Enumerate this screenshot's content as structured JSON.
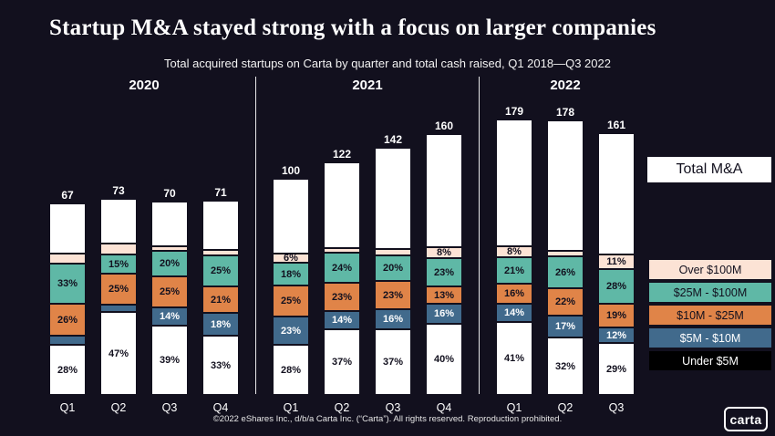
{
  "header": {
    "title": "Startup M&A stayed strong with a focus on larger companies",
    "subtitle": "Total acquired startups on Carta by quarter and total cash raised, Q1 2018—Q3 2022"
  },
  "legend": {
    "total_label": "Total M&A",
    "items": [
      {
        "key": "over_100m",
        "label": "Over $100M",
        "color": "#fce3d5",
        "text_color": "#12101e"
      },
      {
        "key": "25m_100m",
        "label": "$25M - $100M",
        "color": "#5fb8a6",
        "text_color": "#12101e"
      },
      {
        "key": "10m_25m",
        "label": "$10M - $25M",
        "color": "#e08448",
        "text_color": "#12101e"
      },
      {
        "key": "5m_10m",
        "label": "$5M - $10M",
        "color": "#416a8c",
        "text_color": "#ffffff"
      },
      {
        "key": "under_5m",
        "label": "Under $5M",
        "color": "#000000",
        "text_color": "#ffffff"
      }
    ]
  },
  "footer": {
    "text": "©2022 eShares Inc., d/b/a Carta Inc. (“Carta”). All rights reserved. Reproduction prohibited."
  },
  "logo": {
    "text": "carta"
  },
  "colors": {
    "background": "#12101e",
    "bar_white": "#ffffff",
    "divider": "#ffffff"
  },
  "chart_data": {
    "type": "bar",
    "stacked": true,
    "title": "Startup M&A stayed strong with a focus on larger companies",
    "subtitle": "Total acquired startups on Carta by quarter and total cash raised, Q1 2018—Q3 2022",
    "ylabel": "Total acquired startups",
    "segment_order_bottom_to_top": [
      "under_5m",
      "5m_10m",
      "10m_25m",
      "25m_100m",
      "over_100m"
    ],
    "segment_colors": {
      "under_5m": {
        "bg": "#ffffff",
        "text": "#12101e"
      },
      "5m_10m": {
        "bg": "#416a8c",
        "text": "#ffffff"
      },
      "10m_25m": {
        "bg": "#e08448",
        "text": "#12101e"
      },
      "25m_100m": {
        "bg": "#5fb8a6",
        "text": "#12101e"
      },
      "over_100m": {
        "bg": "#fce3d5",
        "text": "#12101e"
      }
    },
    "groups": [
      {
        "year": "2020",
        "bars": [
          {
            "quarter": "Q1",
            "total": 67,
            "segments": [
              {
                "name": "under_5m",
                "pct": 28,
                "label": "28%"
              },
              {
                "name": "5m_10m",
                "pct": 6,
                "label": ""
              },
              {
                "name": "10m_25m",
                "pct": 26,
                "label": "26%"
              },
              {
                "name": "25m_100m",
                "pct": 33,
                "label": "33%"
              },
              {
                "name": "over_100m",
                "pct": 7,
                "label": ""
              }
            ]
          },
          {
            "quarter": "Q2",
            "total": 73,
            "segments": [
              {
                "name": "under_5m",
                "pct": 47,
                "label": "47%"
              },
              {
                "name": "5m_10m",
                "pct": 5,
                "label": ""
              },
              {
                "name": "10m_25m",
                "pct": 25,
                "label": "25%"
              },
              {
                "name": "25m_100m",
                "pct": 15,
                "label": "15%"
              },
              {
                "name": "over_100m",
                "pct": 8,
                "label": ""
              }
            ]
          },
          {
            "quarter": "Q3",
            "total": 70,
            "segments": [
              {
                "name": "under_5m",
                "pct": 39,
                "label": "39%"
              },
              {
                "name": "5m_10m",
                "pct": 14,
                "label": "14%"
              },
              {
                "name": "10m_25m",
                "pct": 25,
                "label": "25%"
              },
              {
                "name": "25m_100m",
                "pct": 20,
                "label": "20%"
              },
              {
                "name": "over_100m",
                "pct": 2,
                "label": ""
              }
            ]
          },
          {
            "quarter": "Q4",
            "total": 71,
            "segments": [
              {
                "name": "under_5m",
                "pct": 33,
                "label": "33%"
              },
              {
                "name": "5m_10m",
                "pct": 18,
                "label": "18%"
              },
              {
                "name": "10m_25m",
                "pct": 21,
                "label": "21%"
              },
              {
                "name": "25m_100m",
                "pct": 25,
                "label": "25%"
              },
              {
                "name": "over_100m",
                "pct": 3,
                "label": ""
              }
            ]
          }
        ]
      },
      {
        "year": "2021",
        "bars": [
          {
            "quarter": "Q1",
            "total": 100,
            "segments": [
              {
                "name": "under_5m",
                "pct": 28,
                "label": "28%"
              },
              {
                "name": "5m_10m",
                "pct": 23,
                "label": "23%"
              },
              {
                "name": "10m_25m",
                "pct": 25,
                "label": "25%"
              },
              {
                "name": "25m_100m",
                "pct": 18,
                "label": "18%"
              },
              {
                "name": "over_100m",
                "pct": 6,
                "label": "6%"
              }
            ]
          },
          {
            "quarter": "Q2",
            "total": 122,
            "segments": [
              {
                "name": "under_5m",
                "pct": 37,
                "label": "37%"
              },
              {
                "name": "5m_10m",
                "pct": 14,
                "label": "14%"
              },
              {
                "name": "10m_25m",
                "pct": 23,
                "label": "23%"
              },
              {
                "name": "25m_100m",
                "pct": 24,
                "label": "24%"
              },
              {
                "name": "over_100m",
                "pct": 2,
                "label": ""
              }
            ]
          },
          {
            "quarter": "Q3",
            "total": 142,
            "segments": [
              {
                "name": "under_5m",
                "pct": 37,
                "label": "37%"
              },
              {
                "name": "5m_10m",
                "pct": 16,
                "label": "16%"
              },
              {
                "name": "10m_25m",
                "pct": 23,
                "label": "23%"
              },
              {
                "name": "25m_100m",
                "pct": 20,
                "label": "20%"
              },
              {
                "name": "over_100m",
                "pct": 4,
                "label": ""
              }
            ]
          },
          {
            "quarter": "Q4",
            "total": 160,
            "segments": [
              {
                "name": "under_5m",
                "pct": 40,
                "label": "40%"
              },
              {
                "name": "5m_10m",
                "pct": 16,
                "label": "16%"
              },
              {
                "name": "10m_25m",
                "pct": 13,
                "label": "13%"
              },
              {
                "name": "25m_100m",
                "pct": 23,
                "label": "23%"
              },
              {
                "name": "over_100m",
                "pct": 8,
                "label": "8%"
              }
            ]
          }
        ]
      },
      {
        "year": "2022",
        "bars": [
          {
            "quarter": "Q1",
            "total": 179,
            "segments": [
              {
                "name": "under_5m",
                "pct": 41,
                "label": "41%"
              },
              {
                "name": "5m_10m",
                "pct": 14,
                "label": "14%"
              },
              {
                "name": "10m_25m",
                "pct": 16,
                "label": "16%"
              },
              {
                "name": "25m_100m",
                "pct": 21,
                "label": "21%"
              },
              {
                "name": "over_100m",
                "pct": 8,
                "label": "8%"
              }
            ]
          },
          {
            "quarter": "Q2",
            "total": 178,
            "segments": [
              {
                "name": "under_5m",
                "pct": 32,
                "label": "32%"
              },
              {
                "name": "5m_10m",
                "pct": 17,
                "label": "17%"
              },
              {
                "name": "10m_25m",
                "pct": 22,
                "label": "22%"
              },
              {
                "name": "25m_100m",
                "pct": 26,
                "label": "26%"
              },
              {
                "name": "over_100m",
                "pct": 3,
                "label": ""
              }
            ]
          },
          {
            "quarter": "Q3",
            "total": 161,
            "segments": [
              {
                "name": "under_5m",
                "pct": 29,
                "label": "29%"
              },
              {
                "name": "5m_10m",
                "pct": 12,
                "label": "12%"
              },
              {
                "name": "10m_25m",
                "pct": 19,
                "label": "19%"
              },
              {
                "name": "25m_100m",
                "pct": 28,
                "label": "28%"
              },
              {
                "name": "over_100m",
                "pct": 11,
                "label": "11%"
              }
            ]
          }
        ]
      }
    ]
  }
}
